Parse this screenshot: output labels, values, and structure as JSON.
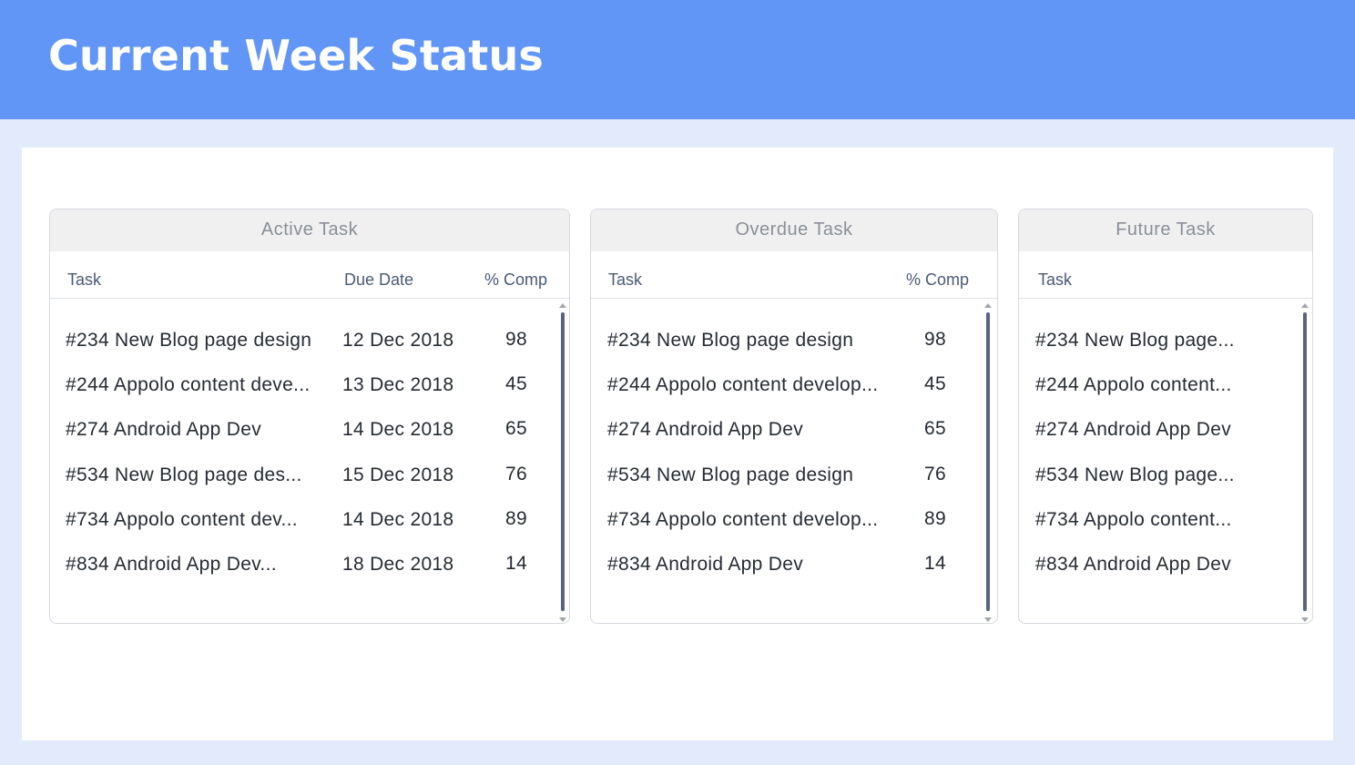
{
  "header": {
    "title": "Current Week Status"
  },
  "panels": {
    "active": {
      "title": "Active Task",
      "columns": {
        "task": "Task",
        "due": "Due Date",
        "comp": "% Comp"
      },
      "rows": [
        {
          "task": "#234 New Blog page design",
          "due": "12 Dec 2018",
          "comp": "98"
        },
        {
          "task": "#244 Appolo content deve...",
          "due": "13 Dec 2018",
          "comp": "45"
        },
        {
          "task": "#274 Android App Dev",
          "due": "14 Dec 2018",
          "comp": "65"
        },
        {
          "task": "#534 New Blog page des...",
          "due": "15 Dec 2018",
          "comp": "76"
        },
        {
          "task": "#734 Appolo content dev...",
          "due": "14 Dec 2018",
          "comp": "89"
        },
        {
          "task": "#834 Android App Dev...",
          "due": "18 Dec 2018",
          "comp": "14"
        }
      ]
    },
    "overdue": {
      "title": "Overdue Task",
      "columns": {
        "task": "Task",
        "comp": "% Comp"
      },
      "rows": [
        {
          "task": "#234 New Blog page design",
          "comp": "98"
        },
        {
          "task": "#244 Appolo content develop...",
          "comp": "45"
        },
        {
          "task": "#274 Android App Dev",
          "comp": "65"
        },
        {
          "task": "#534 New Blog page design",
          "comp": "76"
        },
        {
          "task": "#734 Appolo content develop...",
          "comp": "89"
        },
        {
          "task": "#834 Android App Dev",
          "comp": "14"
        }
      ]
    },
    "future": {
      "title": "Future Task",
      "columns": {
        "task": "Task"
      },
      "rows": [
        {
          "task": "#234 New Blog page..."
        },
        {
          "task": "#244 Appolo content..."
        },
        {
          "task": "#274 Android App Dev"
        },
        {
          "task": "#534 New Blog page..."
        },
        {
          "task": "#734 Appolo content..."
        },
        {
          "task": "#834 Android App Dev"
        }
      ]
    }
  },
  "colors": {
    "header": "#6196f7",
    "background": "#e3eafc",
    "scroll_thumb": "#5a6380"
  }
}
